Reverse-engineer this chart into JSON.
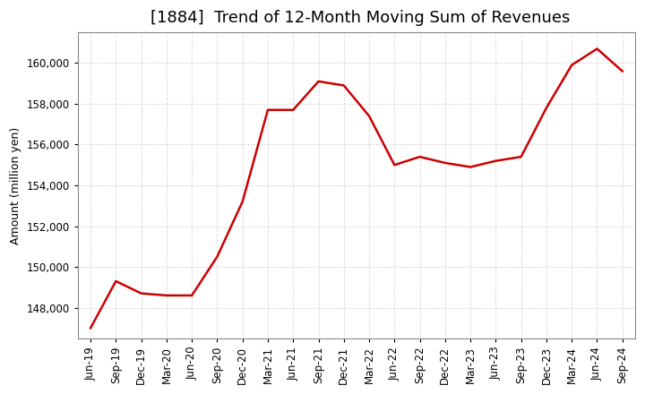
{
  "title": "[1884]  Trend of 12-Month Moving Sum of Revenues",
  "ylabel": "Amount (million yen)",
  "line_color": "#cc0000",
  "line_width": 1.8,
  "background_color": "#ffffff",
  "plot_bg_color": "#ffffff",
  "grid_color": "#bbbbbb",
  "ylim": [
    146500,
    161500
  ],
  "yticks": [
    148000,
    150000,
    152000,
    154000,
    156000,
    158000,
    160000
  ],
  "x_labels": [
    "Jun-19",
    "Sep-19",
    "Dec-19",
    "Mar-20",
    "Jun-20",
    "Sep-20",
    "Dec-20",
    "Mar-21",
    "Jun-21",
    "Sep-21",
    "Dec-21",
    "Mar-22",
    "Jun-22",
    "Sep-22",
    "Dec-22",
    "Mar-23",
    "Jun-23",
    "Sep-23",
    "Dec-23",
    "Mar-24",
    "Jun-24",
    "Sep-24"
  ],
  "values": [
    147000,
    149300,
    148700,
    148600,
    148600,
    150500,
    153200,
    157700,
    157700,
    159100,
    158900,
    157400,
    155000,
    155400,
    155100,
    154900,
    155200,
    155400,
    157800,
    159900,
    160700,
    159600
  ],
  "title_fontsize": 13,
  "axis_fontsize": 9,
  "tick_fontsize": 8.5
}
